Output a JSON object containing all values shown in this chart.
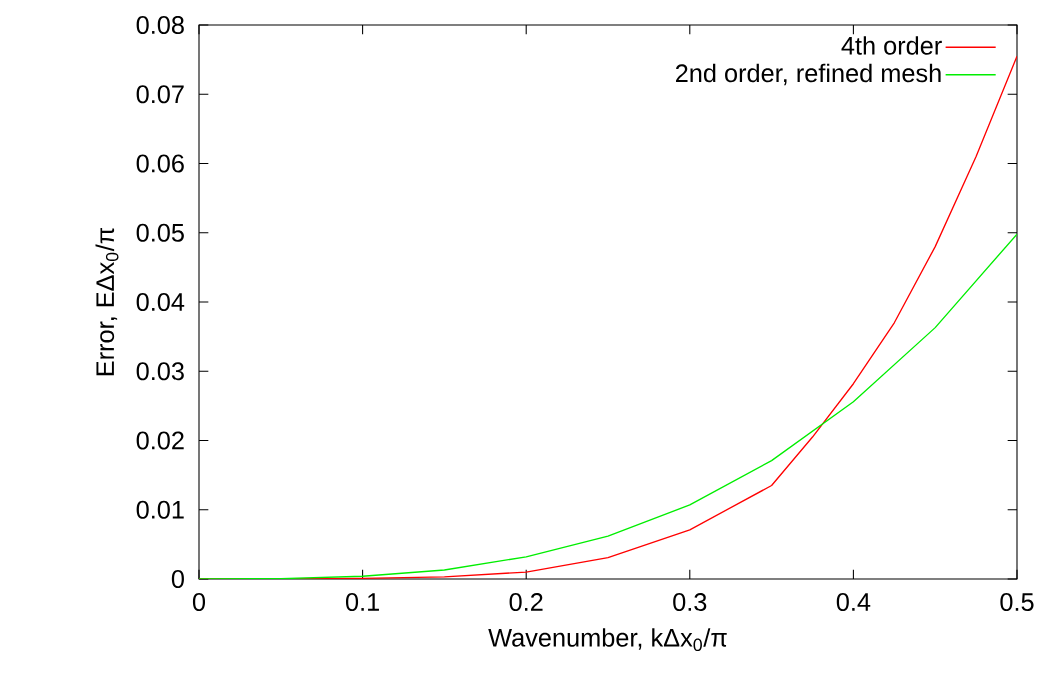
{
  "chart_data": {
    "type": "line",
    "xlabel": "Wavenumber, kΔx$_{0}$/π",
    "ylabel": "Error, EΔx$_{0}$/π",
    "xlim": [
      0,
      0.5
    ],
    "ylim": [
      0,
      0.08
    ],
    "xticks": [
      0,
      0.1,
      0.2,
      0.3,
      0.4,
      0.5
    ],
    "yticks": [
      0,
      0.01,
      0.02,
      0.03,
      0.04,
      0.05,
      0.06,
      0.07,
      0.08
    ],
    "grid": false,
    "legend": "top right",
    "marker": "none",
    "line_style": "solid",
    "series": [
      {
        "name": "4th order",
        "color": "#ff0000",
        "x": [
          0,
          0.05,
          0.1,
          0.15,
          0.2,
          0.25,
          0.3,
          0.35,
          0.375,
          0.4,
          0.425,
          0.45,
          0.475,
          0.5
        ],
        "values": [
          0,
          0,
          0.0001,
          0.0003,
          0.001,
          0.0031,
          0.0071,
          0.0135,
          0.0205,
          0.0282,
          0.037,
          0.048,
          0.061,
          0.0755
        ]
      },
      {
        "name": "2nd order, refined mesh",
        "color": "#00ee00",
        "x": [
          0,
          0.05,
          0.1,
          0.15,
          0.2,
          0.25,
          0.3,
          0.35,
          0.4,
          0.45,
          0.5
        ],
        "values": [
          0,
          5e-05,
          0.0004,
          0.0013,
          0.0032,
          0.0062,
          0.0107,
          0.0171,
          0.0256,
          0.0363,
          0.0498
        ]
      }
    ]
  }
}
